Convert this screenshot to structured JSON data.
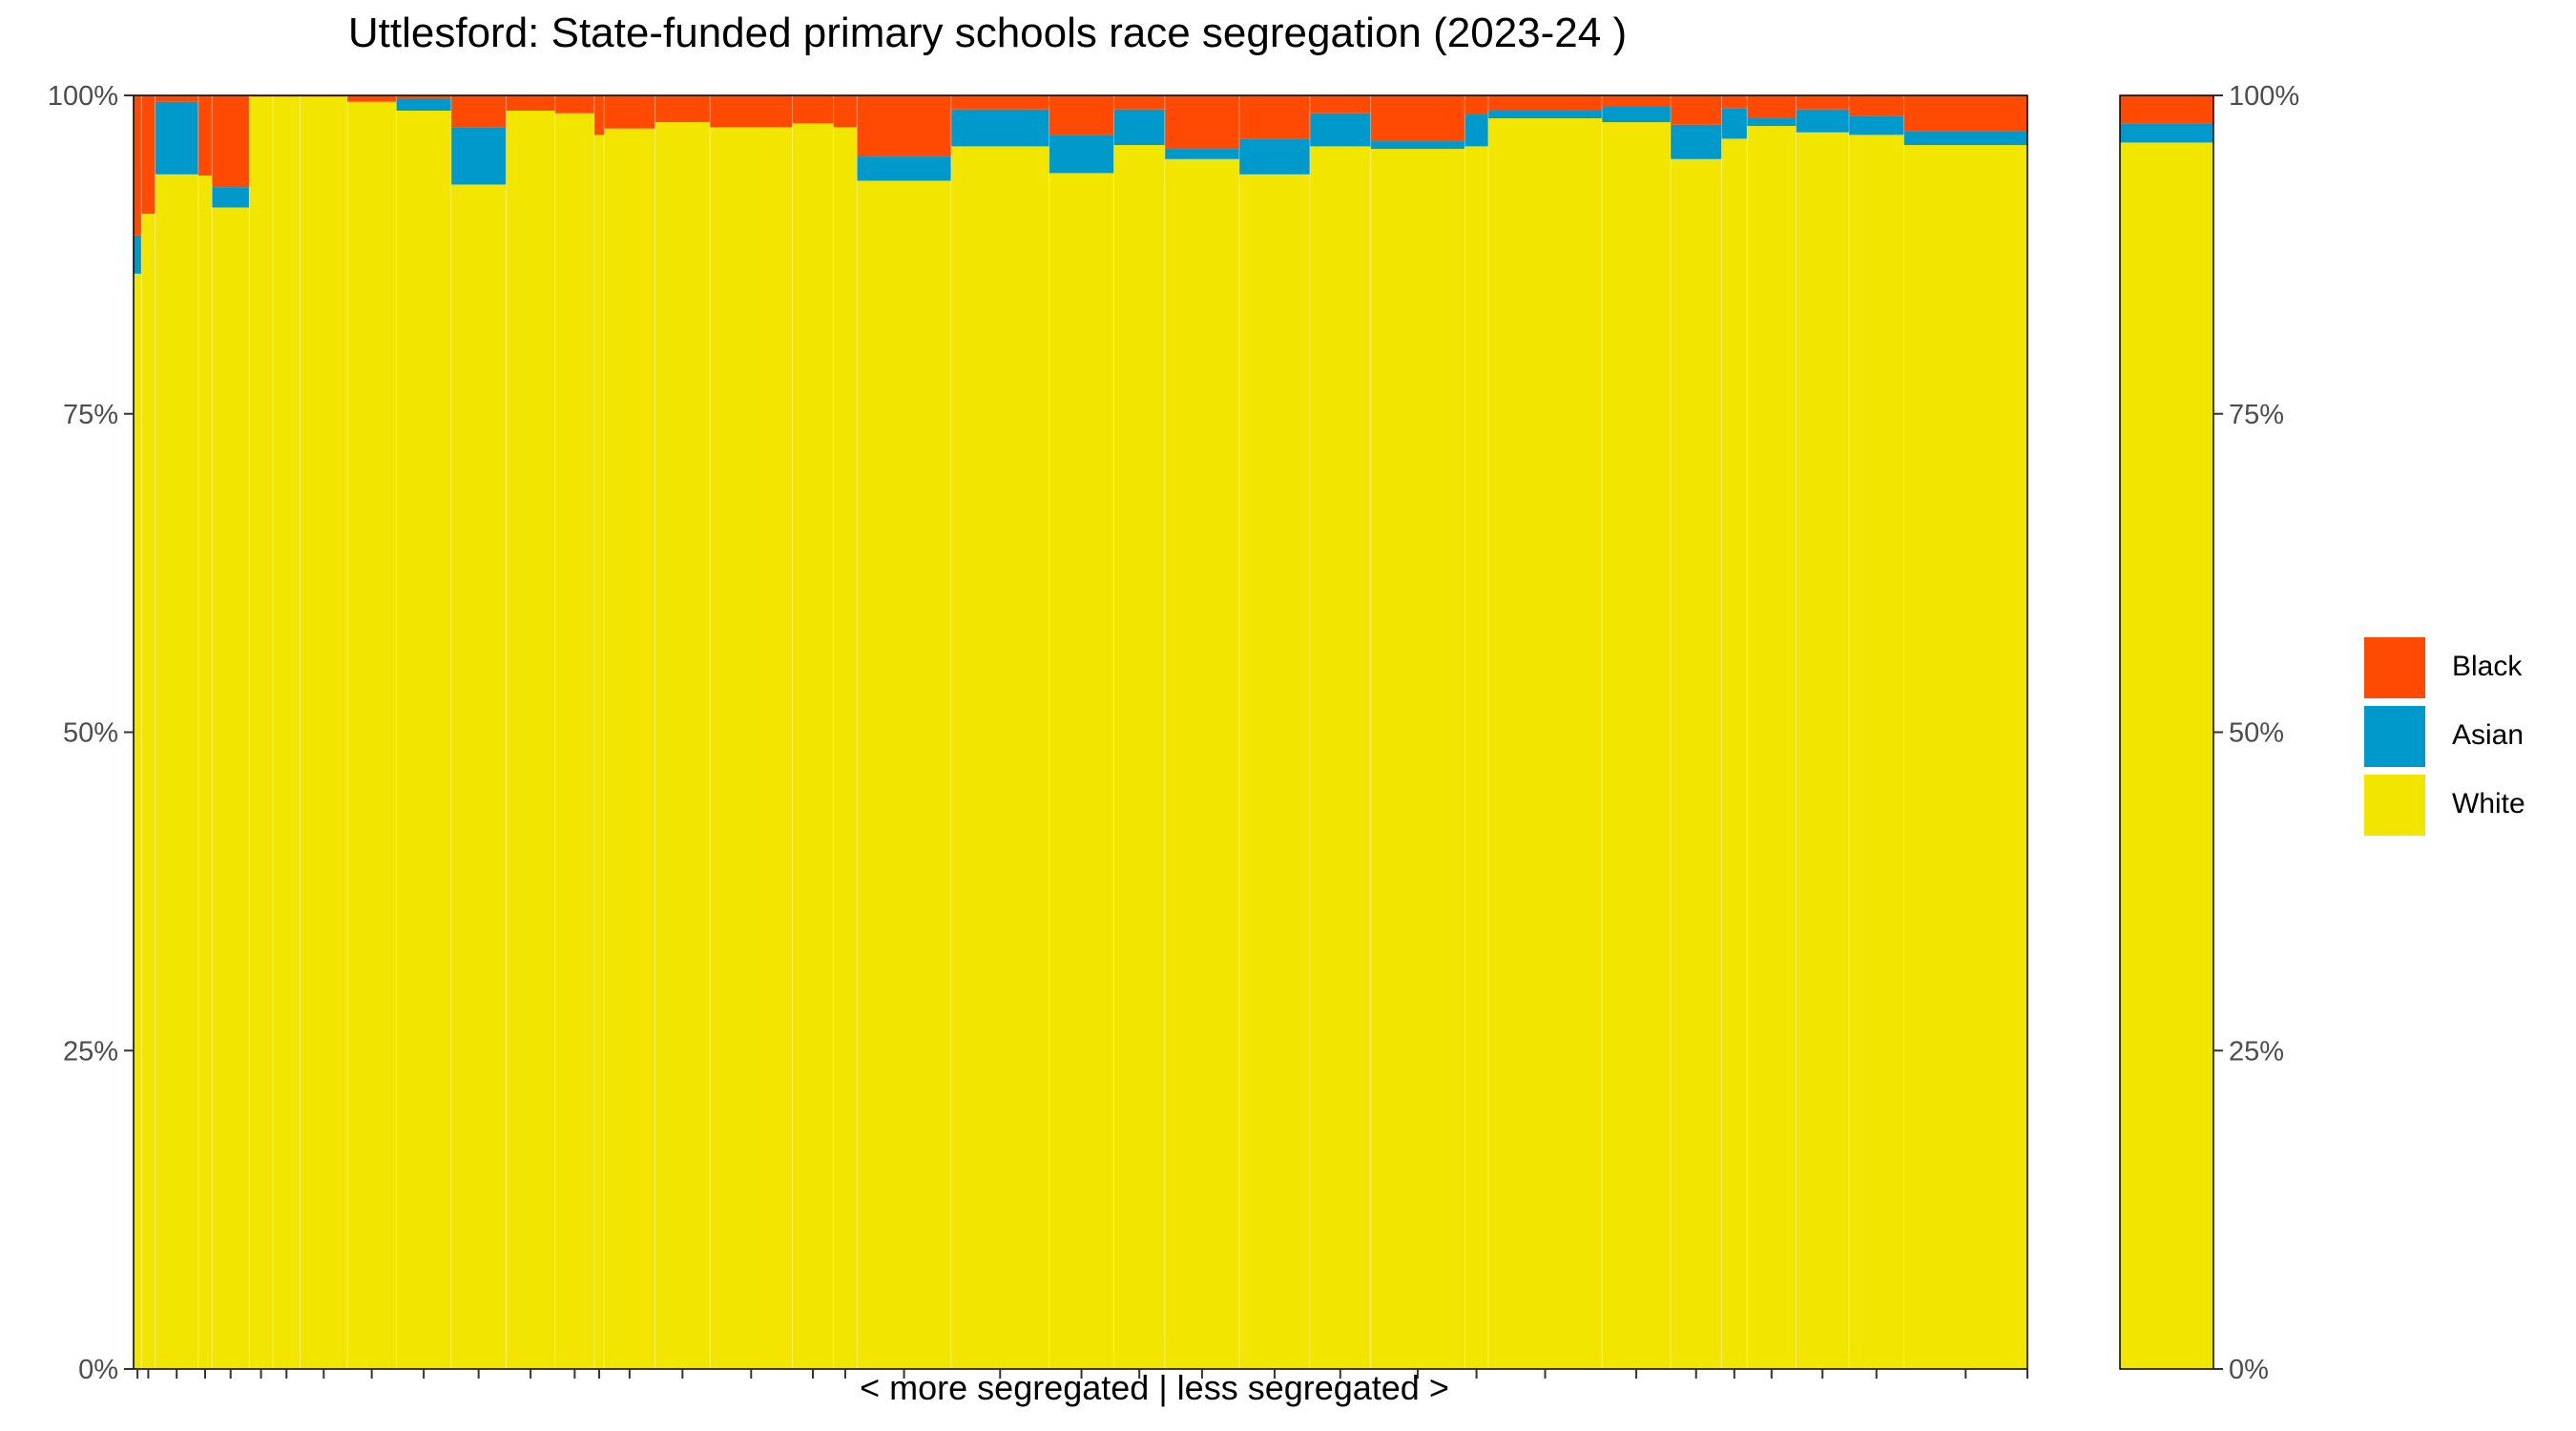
{
  "chart_data": {
    "type": "bar",
    "subtype": "stacked-variable-width-percent",
    "title": "Uttlesford: State-funded primary schools race segregation (2023-24 )",
    "xlabel": "< more segregated | less segregated >",
    "ylabel": "",
    "ylim": [
      0,
      100
    ],
    "y_ticks": [
      "0%",
      "25%",
      "50%",
      "75%",
      "100%"
    ],
    "secondary_y_axis": true,
    "grid": false,
    "legend_position": "right",
    "series_order": [
      "Black",
      "Asian",
      "White"
    ],
    "series_colors": {
      "Black": "#fe4a02",
      "Asian": "#0099cc",
      "White": "#f2e500"
    },
    "schools": [
      {
        "pupils": 8,
        "white": 86.0,
        "asian": 3.0,
        "black": 11.0
      },
      {
        "pupils": 14,
        "white": 90.7,
        "asian": 0.0,
        "black": 9.3
      },
      {
        "pupils": 44,
        "white": 93.8,
        "asian": 5.7,
        "black": 0.5
      },
      {
        "pupils": 14,
        "white": 93.7,
        "asian": 0.0,
        "black": 6.3
      },
      {
        "pupils": 38,
        "white": 91.2,
        "asian": 1.6,
        "black": 7.2
      },
      {
        "pupils": 24,
        "white": 99.9,
        "asian": 0.0,
        "black": 0.1
      },
      {
        "pupils": 28,
        "white": 99.9,
        "asian": 0.0,
        "black": 0.1
      },
      {
        "pupils": 48,
        "white": 99.9,
        "asian": 0.0,
        "black": 0.1
      },
      {
        "pupils": 50,
        "white": 99.5,
        "asian": 0.0,
        "black": 0.5
      },
      {
        "pupils": 56,
        "white": 98.8,
        "asian": 0.9,
        "black": 0.3
      },
      {
        "pupils": 56,
        "white": 93.0,
        "asian": 4.5,
        "black": 2.5
      },
      {
        "pupils": 50,
        "white": 98.8,
        "asian": 0.0,
        "black": 1.2
      },
      {
        "pupils": 40,
        "white": 98.6,
        "asian": 0.0,
        "black": 1.4
      },
      {
        "pupils": 10,
        "white": 96.9,
        "asian": 0.0,
        "black": 3.1
      },
      {
        "pupils": 52,
        "white": 97.4,
        "asian": 0.0,
        "black": 2.6
      },
      {
        "pupils": 56,
        "white": 97.9,
        "asian": 0.0,
        "black": 2.1
      },
      {
        "pupils": 84,
        "white": 97.5,
        "asian": 0.0,
        "black": 2.5
      },
      {
        "pupils": 42,
        "white": 97.8,
        "asian": 0.0,
        "black": 2.2
      },
      {
        "pupils": 24,
        "white": 97.5,
        "asian": 0.0,
        "black": 2.5
      },
      {
        "pupils": 96,
        "white": 93.3,
        "asian": 1.9,
        "black": 4.8
      },
      {
        "pupils": 100,
        "white": 96.0,
        "asian": 2.9,
        "black": 1.1
      },
      {
        "pupils": 66,
        "white": 93.9,
        "asian": 3.0,
        "black": 3.1
      },
      {
        "pupils": 52,
        "white": 96.1,
        "asian": 2.8,
        "black": 1.1
      },
      {
        "pupils": 76,
        "white": 95.0,
        "asian": 0.8,
        "black": 4.2
      },
      {
        "pupils": 72,
        "white": 93.8,
        "asian": 2.8,
        "black": 3.4
      },
      {
        "pupils": 62,
        "white": 96.0,
        "asian": 2.6,
        "black": 1.4
      },
      {
        "pupils": 96,
        "white": 95.8,
        "asian": 0.6,
        "black": 3.6
      },
      {
        "pupils": 24,
        "white": 96.0,
        "asian": 2.5,
        "black": 1.5
      },
      {
        "pupils": 116,
        "white": 98.2,
        "asian": 0.6,
        "black": 1.2
      },
      {
        "pupils": 70,
        "white": 97.9,
        "asian": 1.2,
        "black": 0.9
      },
      {
        "pupils": 52,
        "white": 95.0,
        "asian": 2.7,
        "black": 2.3
      },
      {
        "pupils": 26,
        "white": 96.6,
        "asian": 2.4,
        "black": 1.0
      },
      {
        "pupils": 50,
        "white": 97.6,
        "asian": 0.6,
        "black": 1.8
      },
      {
        "pupils": 54,
        "white": 97.1,
        "asian": 1.8,
        "black": 1.1
      },
      {
        "pupils": 56,
        "white": 96.9,
        "asian": 1.5,
        "black": 1.6
      },
      {
        "pupils": 126,
        "white": 96.1,
        "asian": 1.1,
        "black": 2.8
      }
    ],
    "overall": {
      "white": 96.3,
      "asian": 1.5,
      "black": 2.2
    }
  }
}
